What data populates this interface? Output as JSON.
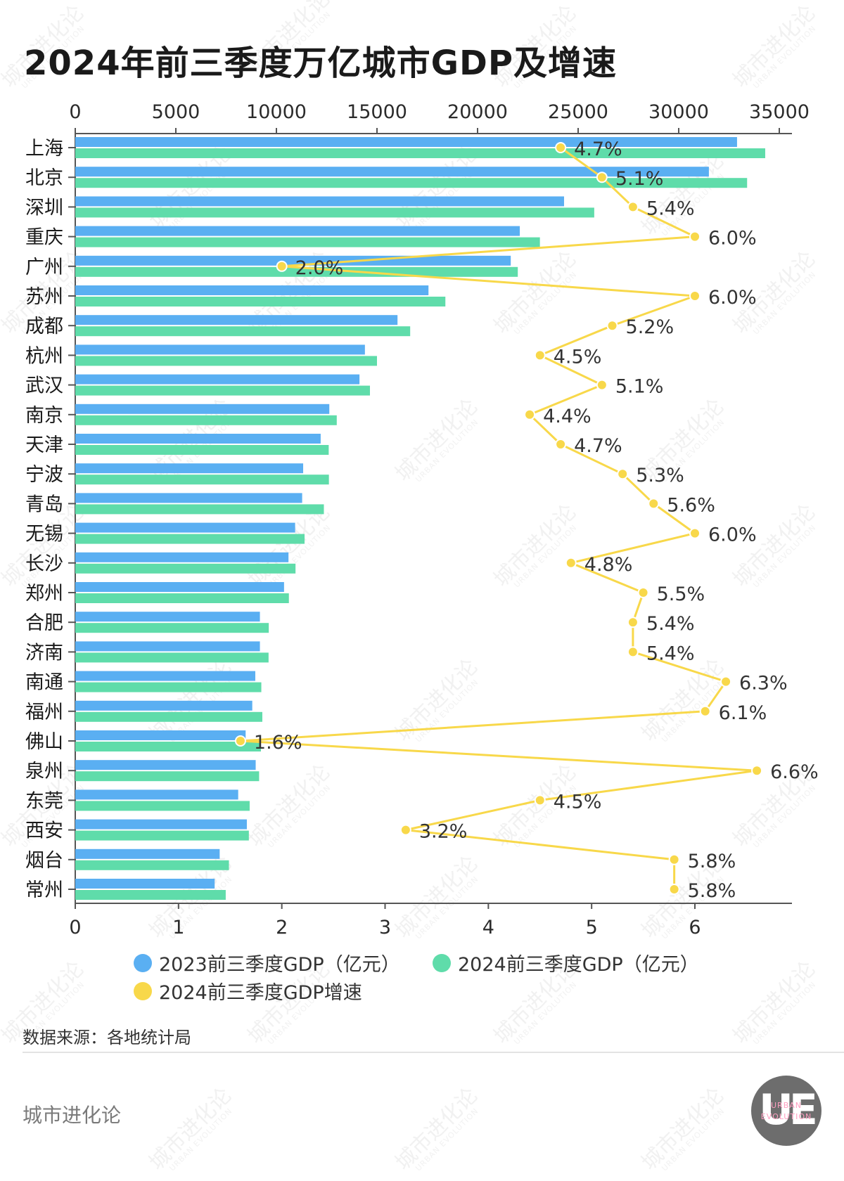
{
  "title": "2024年前三季度万亿城市GDP及增速",
  "source": "数据来源：各地统计局",
  "brand": "城市进化论",
  "logo": {
    "mark": "UE",
    "line1": "URBAN",
    "line2": "EVOLUTION"
  },
  "watermark": {
    "main": "城市进化论",
    "sub": "URBAN EVOLUTION"
  },
  "colors": {
    "gdp2023": "#5aaff2",
    "gdp2024": "#5fdcaa",
    "growth": "#f8d84a",
    "axis": "#555555"
  },
  "legend": [
    {
      "key": "gdp2023",
      "label": "2023前三季度GDP（亿元）"
    },
    {
      "key": "gdp2024",
      "label": "2024前三季度GDP（亿元）"
    },
    {
      "key": "growth",
      "label": "2024前三季度GDP增速"
    }
  ],
  "chart_data": {
    "type": "bar",
    "orientation": "horizontal",
    "categories": [
      "上海",
      "北京",
      "深圳",
      "重庆",
      "广州",
      "苏州",
      "成都",
      "杭州",
      "武汉",
      "南京",
      "天津",
      "宁波",
      "青岛",
      "无锡",
      "长沙",
      "郑州",
      "合肥",
      "济南",
      "南通",
      "福州",
      "佛山",
      "泉州",
      "东莞",
      "西安",
      "烟台",
      "常州"
    ],
    "series": [
      {
        "name": "2023前三季度GDP（亿元）",
        "axis": "top",
        "values": [
          32900,
          31500,
          24300,
          22100,
          21650,
          17560,
          16020,
          14400,
          14130,
          12630,
          12200,
          11330,
          11280,
          10930,
          10600,
          10380,
          9180,
          9180,
          8950,
          8800,
          8470,
          8970,
          8100,
          8530,
          7180,
          6930
        ]
      },
      {
        "name": "2024前三季度GDP（亿元）",
        "axis": "bottom",
        "values": [
          34300,
          33400,
          25800,
          23100,
          22000,
          18400,
          16650,
          15000,
          14650,
          13000,
          12600,
          12610,
          12360,
          11400,
          10950,
          10620,
          9620,
          9610,
          9250,
          9300,
          9230,
          9140,
          8670,
          8630,
          7640,
          7480
        ]
      },
      {
        "name": "2024前三季度GDP增速",
        "axis": "bottom",
        "type": "line",
        "values": [
          4.7,
          5.1,
          5.4,
          6.0,
          2.0,
          6.0,
          5.2,
          4.5,
          5.1,
          4.4,
          4.7,
          5.3,
          5.6,
          6.0,
          4.8,
          5.5,
          5.4,
          5.4,
          6.3,
          6.1,
          1.6,
          6.6,
          4.5,
          3.2,
          5.8,
          5.8
        ],
        "labels": [
          "4.7%",
          "5.1%",
          "5.4%",
          "6.0%",
          "2.0%",
          "6.0%",
          "5.2%",
          "4.5%",
          "5.1%",
          "4.4%",
          "4.7%",
          "5.3%",
          "5.6%",
          "6.0%",
          "4.8%",
          "5.5%",
          "5.4%",
          "5.4%",
          "6.3%",
          "6.1%",
          "1.6%",
          "6.6%",
          "4.5%",
          "3.2%",
          "5.8%",
          "5.8%"
        ]
      }
    ],
    "top_axis": {
      "min": 0,
      "max": 35000,
      "ticks": [
        "0",
        "5000",
        "10000",
        "15000",
        "20000",
        "25000",
        "30000",
        "35000"
      ]
    },
    "bottom_axis": {
      "min": 0,
      "max": 6.6,
      "ticks": [
        "0",
        "1",
        "2",
        "3",
        "4",
        "5",
        "6"
      ]
    }
  }
}
